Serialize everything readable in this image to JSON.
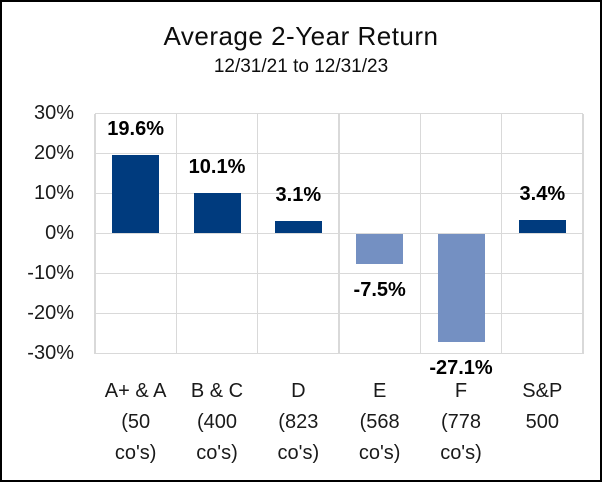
{
  "chart_data": {
    "type": "bar",
    "title": "Average 2-Year Return",
    "subtitle": "12/31/21 to 12/31/23",
    "categories": [
      "A+ & A\n(50\nco's)",
      "B & C\n(400\nco's)",
      "D\n(823\nco's)",
      "E\n(568\nco's)",
      "F\n(778\nco's)",
      "S&P\n500"
    ],
    "values": [
      19.6,
      10.1,
      3.1,
      -7.5,
      -27.1,
      3.4
    ],
    "value_labels": [
      "19.6%",
      "10.1%",
      "3.1%",
      "-7.5%",
      "-27.1%",
      "3.4%"
    ],
    "xlabel": "",
    "ylabel": "",
    "ylim": [
      -30,
      30
    ],
    "ytick_step": 10,
    "ytick_labels": [
      "30%",
      "20%",
      "10%",
      "0%",
      "-10%",
      "-20%",
      "-30%"
    ],
    "grid": true,
    "legend": false,
    "colors": {
      "positive_bar": "#003b7e",
      "negative_bar": "#7490c2",
      "gridline": "#d9d9d9",
      "value_label_text": "#000000",
      "axis_text": "#1a1a1a",
      "frame": "#000000",
      "background": "#ffffff"
    }
  }
}
